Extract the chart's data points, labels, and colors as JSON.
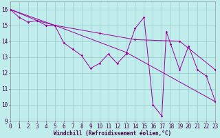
{
  "xlabel": "Windchill (Refroidissement éolien,°C)",
  "bg_color": "#c0ecec",
  "grid_color": "#99cccc",
  "line_color": "#990099",
  "series_zigzag": [
    [
      0,
      16.0
    ],
    [
      1,
      15.5
    ],
    [
      2,
      15.2
    ],
    [
      3,
      15.3
    ],
    [
      4,
      15.0
    ],
    [
      5,
      15.0
    ],
    [
      6,
      13.9
    ],
    [
      7,
      13.5
    ],
    [
      8,
      13.1
    ],
    [
      9,
      12.3
    ],
    [
      10,
      12.6
    ],
    [
      11,
      13.2
    ],
    [
      12,
      12.6
    ],
    [
      13,
      13.2
    ],
    [
      14,
      14.8
    ],
    [
      15,
      15.5
    ],
    [
      16,
      10.0
    ],
    [
      17,
      9.3
    ],
    [
      17.5,
      14.6
    ],
    [
      18,
      13.8
    ],
    [
      19,
      12.2
    ],
    [
      20,
      13.7
    ],
    [
      21,
      12.2
    ],
    [
      22,
      11.8
    ],
    [
      23,
      10.2
    ]
  ],
  "series_gentle": [
    [
      0,
      16.0
    ],
    [
      3,
      15.3
    ],
    [
      5,
      15.0
    ],
    [
      10,
      14.5
    ],
    [
      14,
      14.1
    ],
    [
      19,
      14.0
    ],
    [
      23,
      12.2
    ]
  ],
  "series_steep": [
    [
      0,
      16.0
    ],
    [
      5,
      15.0
    ],
    [
      13,
      13.3
    ],
    [
      23,
      10.2
    ]
  ],
  "ylim": [
    9.0,
    16.5
  ],
  "xlim": [
    0,
    23
  ],
  "yticks": [
    9,
    10,
    11,
    12,
    13,
    14,
    15,
    16
  ],
  "xticks": [
    0,
    1,
    2,
    3,
    4,
    5,
    6,
    7,
    8,
    9,
    10,
    11,
    12,
    13,
    14,
    15,
    16,
    17,
    18,
    19,
    20,
    21,
    22,
    23
  ],
  "tick_fontsize": 5.5,
  "xlabel_fontsize": 5.5,
  "lw": 0.7,
  "ms": 1.8
}
